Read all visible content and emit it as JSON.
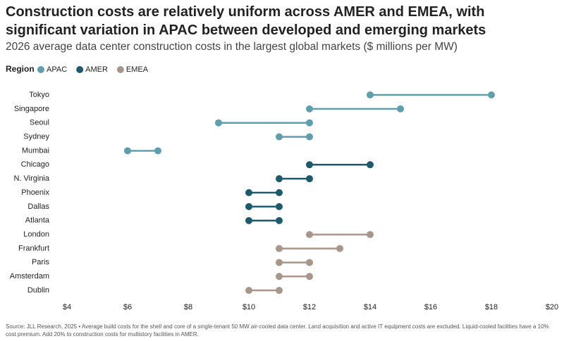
{
  "chart_data": {
    "type": "dumbbell",
    "title": "Construction costs are relatively uniform across AMER and EMEA, with significant variation in APAC between developed and emerging markets",
    "subtitle": "2026 average data center construction costs in the largest global markets ($ millions per MW)",
    "legend_title": "Region",
    "source": "Source: JLL Research, 2025 • Average build costs for the shell and core of a single-tenant 50 MW air-cooled data center. Land acquisition and active IT equipment costs are excluded. Liquid-cooled facilities have a 10% cost premium. Add 20% to construction costs for multistory facilities in AMER.",
    "xlim": [
      4,
      20
    ],
    "xticks": [
      {
        "value": 4,
        "label": "$4"
      },
      {
        "value": 6,
        "label": "$6"
      },
      {
        "value": 8,
        "label": "$8"
      },
      {
        "value": 10,
        "label": "$10"
      },
      {
        "value": 12,
        "label": "$12"
      },
      {
        "value": 14,
        "label": "$14"
      },
      {
        "value": 16,
        "label": "$16"
      },
      {
        "value": 18,
        "label": "$18"
      },
      {
        "value": 20,
        "label": "$20"
      }
    ],
    "series": [
      {
        "name": "APAC",
        "color": "#5f9ead",
        "categories": [
          "Tokyo",
          "Singapore",
          "Seoul",
          "Sydney",
          "Mumbai"
        ],
        "low": [
          14,
          12,
          9,
          11,
          6
        ],
        "high": [
          18,
          15,
          12,
          12,
          7
        ]
      },
      {
        "name": "AMER",
        "color": "#1d5a6c",
        "categories": [
          "Chicago",
          "N. Virginia",
          "Phoenix",
          "Dallas",
          "Atlanta"
        ],
        "low": [
          12,
          11,
          10,
          10,
          10
        ],
        "high": [
          14,
          12,
          11,
          11,
          11
        ]
      },
      {
        "name": "EMEA",
        "color": "#a8968a",
        "categories": [
          "London",
          "Frankfurt",
          "Paris",
          "Amsterdam",
          "Dublin"
        ],
        "low": [
          12,
          11,
          11,
          11,
          10
        ],
        "high": [
          14,
          13,
          12,
          12,
          11
        ]
      }
    ]
  }
}
